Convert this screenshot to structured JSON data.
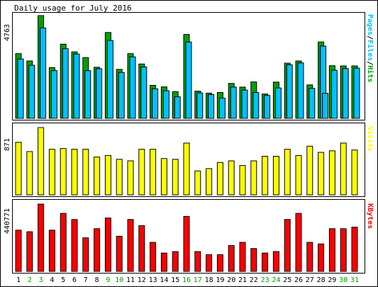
{
  "chart_data": [
    {
      "type": "bar",
      "title": "Daily usage for July 2016",
      "ylabel": "4763",
      "legend": [
        {
          "text": "Pages",
          "color": "#00c0ff"
        },
        {
          "text": "Files",
          "color": "#00c0ff"
        },
        {
          "text": "Hits",
          "color": "#00a000"
        }
      ],
      "legend_separator": "/",
      "categories": [
        "1",
        "2",
        "3",
        "4",
        "5",
        "6",
        "7",
        "8",
        "9",
        "10",
        "11",
        "12",
        "13",
        "14",
        "15",
        "16",
        "17",
        "18",
        "19",
        "20",
        "21",
        "22",
        "23",
        "24",
        "25",
        "26",
        "27",
        "28",
        "29",
        "30",
        "31"
      ],
      "weekend_days": [
        "2",
        "3",
        "9",
        "10",
        "16",
        "17",
        "23",
        "24",
        "30",
        "31"
      ],
      "ylim": [
        0,
        4763
      ],
      "series": [
        {
          "name": "Hits",
          "color": "#00a000",
          "values": [
            3000,
            2660,
            4763,
            2350,
            3440,
            3080,
            2820,
            2370,
            3980,
            2270,
            3000,
            2520,
            1530,
            1460,
            1240,
            3890,
            1260,
            1170,
            1200,
            1620,
            1450,
            1690,
            1130,
            1680,
            2560,
            2660,
            1550,
            3540,
            2440,
            2430,
            2430
          ]
        },
        {
          "name": "Files",
          "color": "#00c0ff",
          "values": [
            2750,
            2460,
            4190,
            2210,
            3230,
            2980,
            2210,
            2300,
            3610,
            2130,
            2850,
            2380,
            1370,
            1280,
            1000,
            3540,
            1180,
            1100,
            940,
            1450,
            1310,
            1200,
            1060,
            1410,
            2480,
            2570,
            1390,
            3350,
            2230,
            2310,
            2330
          ]
        },
        {
          "name": "Pages",
          "color": "#00c0ff",
          "values": [
            0,
            0,
            0,
            0,
            0,
            0,
            0,
            0,
            0,
            0,
            0,
            0,
            0,
            0,
            0,
            0,
            0,
            0,
            0,
            0,
            0,
            0,
            0,
            0,
            0,
            0,
            0,
            1160,
            0,
            0,
            0
          ]
        }
      ]
    },
    {
      "type": "bar",
      "ylabel": "871",
      "legend": [
        {
          "text": "Visits",
          "color": "#ffff00"
        }
      ],
      "categories": [
        "1",
        "2",
        "3",
        "4",
        "5",
        "6",
        "7",
        "8",
        "9",
        "10",
        "11",
        "12",
        "13",
        "14",
        "15",
        "16",
        "17",
        "18",
        "19",
        "20",
        "21",
        "22",
        "23",
        "24",
        "25",
        "26",
        "27",
        "28",
        "29",
        "30",
        "31"
      ],
      "ylim": [
        0,
        871
      ],
      "series": [
        {
          "name": "Visits",
          "color": "#ffff00",
          "values": [
            680,
            560,
            871,
            590,
            600,
            590,
            590,
            490,
            510,
            460,
            440,
            590,
            590,
            470,
            460,
            670,
            310,
            340,
            420,
            440,
            380,
            440,
            500,
            500,
            590,
            510,
            630,
            550,
            570,
            670,
            580
          ]
        }
      ]
    },
    {
      "type": "bar",
      "ylabel": "440771",
      "legend": [
        {
          "text": "KBytes",
          "color": "#ff0000"
        }
      ],
      "categories": [
        "1",
        "2",
        "3",
        "4",
        "5",
        "6",
        "7",
        "8",
        "9",
        "10",
        "11",
        "12",
        "13",
        "14",
        "15",
        "16",
        "17",
        "18",
        "19",
        "20",
        "21",
        "22",
        "23",
        "24",
        "25",
        "26",
        "27",
        "28",
        "29",
        "30",
        "31"
      ],
      "ylim": [
        0,
        440771
      ],
      "series": [
        {
          "name": "KBytes",
          "color": "#ff0000",
          "values": [
            270000,
            260000,
            440771,
            270000,
            380000,
            340000,
            220000,
            280000,
            350000,
            230000,
            340000,
            300000,
            190000,
            120000,
            130000,
            360000,
            130000,
            110000,
            110000,
            170000,
            190000,
            150000,
            120000,
            130000,
            340000,
            380000,
            190000,
            180000,
            280000,
            280000,
            290000
          ]
        }
      ]
    }
  ]
}
